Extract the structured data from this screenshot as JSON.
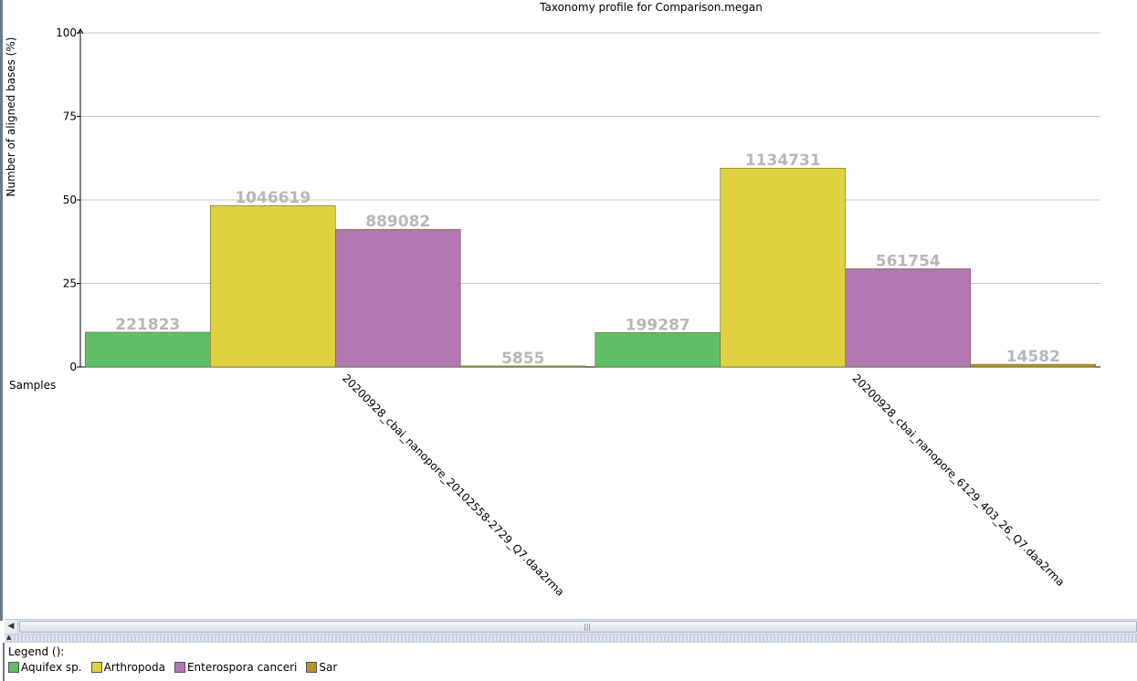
{
  "chart_data": {
    "type": "bar",
    "title": "Taxonomy profile for Comparison.megan",
    "ylabel": "Number of aligned bases (%)",
    "xlabel": "Samples",
    "ylim": [
      0,
      100
    ],
    "yticks": [
      "0",
      "25",
      "50",
      "75",
      "100"
    ],
    "grid": true,
    "legend_position": "bottom",
    "categories": [
      "20200928_cbai_nanopore_20102558-2729_Q7.daa2rma",
      "20200928_cbai_nanopore_6129_403_26_Q7.daa2rma"
    ],
    "series": [
      {
        "name": "Aquifex sp.",
        "color": "#5fbf68",
        "values": [
          10.4,
          10.3
        ],
        "labels": [
          "221823",
          "199287"
        ]
      },
      {
        "name": "Arthropoda",
        "color": "#e0d23e",
        "values": [
          48.3,
          59.5
        ],
        "labels": [
          "1046619",
          "1134731"
        ]
      },
      {
        "name": "Enterospora canceri",
        "color": "#b377b3",
        "values": [
          41.2,
          29.4
        ],
        "labels": [
          "889082",
          "561754"
        ]
      },
      {
        "name": "Sar",
        "color": "#b8932e",
        "values": [
          0.3,
          0.8
        ],
        "labels": [
          "5855",
          "14582"
        ]
      }
    ]
  },
  "legend": {
    "title": "Legend ():"
  },
  "scrollbar": {
    "left_arrow": "◀",
    "grip": "|||"
  }
}
